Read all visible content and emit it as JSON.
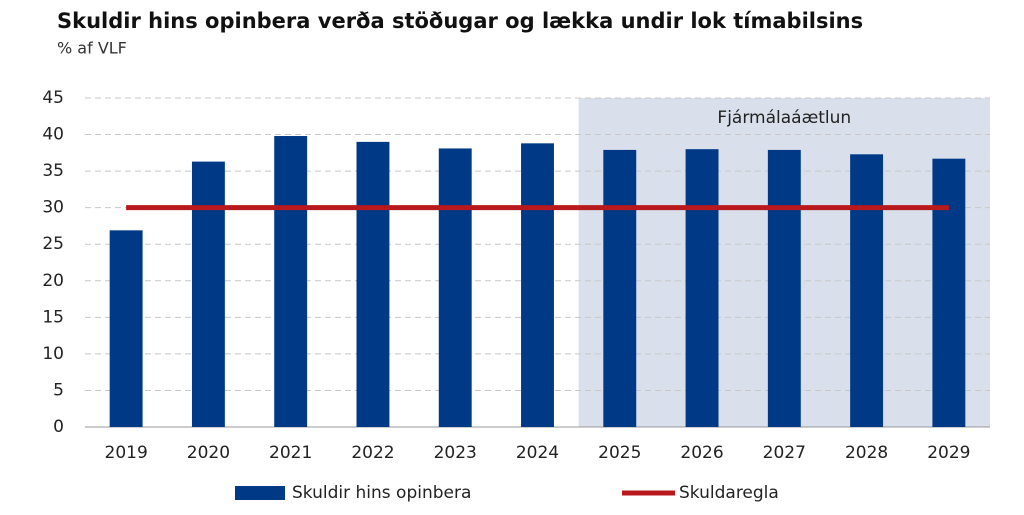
{
  "chart_data": {
    "type": "bar",
    "title": "Skuldir hins opinbera verða stöðugar og lækka undir lok tímabilsins",
    "subtitle": "% af VLF",
    "annotation": "Fjármálaáætlun",
    "shaded_range": [
      "2025",
      "2029"
    ],
    "categories": [
      "2019",
      "2020",
      "2021",
      "2022",
      "2023",
      "2024",
      "2025",
      "2026",
      "2027",
      "2028",
      "2029"
    ],
    "series": [
      {
        "name": "Skuldir hins opinbera",
        "type": "bar",
        "color": "#003a87",
        "values": [
          26.9,
          36.3,
          39.8,
          39.0,
          38.1,
          38.8,
          37.9,
          38.0,
          37.9,
          37.3,
          36.7
        ]
      },
      {
        "name": "Skuldaregla",
        "type": "line",
        "color": "#b7191c",
        "values": [
          30,
          30,
          30,
          30,
          30,
          30,
          30,
          30,
          30,
          30,
          30
        ]
      }
    ],
    "ylim": [
      0,
      45
    ],
    "yticks": [
      0,
      5,
      10,
      15,
      20,
      25,
      30,
      35,
      40,
      45
    ],
    "grid": true,
    "legend": "bottom"
  }
}
